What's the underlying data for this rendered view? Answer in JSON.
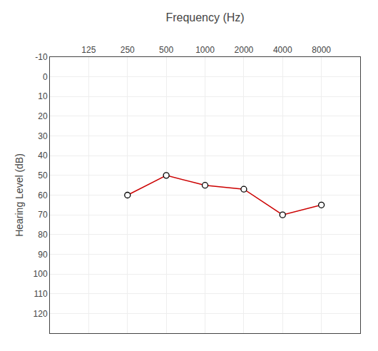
{
  "chart_data": {
    "type": "line",
    "xlabel": "Frequency (Hz)",
    "ylabel": "Hearing Level (dB)",
    "categories": [
      "125",
      "250",
      "500",
      "1000",
      "2000",
      "4000",
      "8000"
    ],
    "values": [
      null,
      60,
      50,
      55,
      57,
      70,
      65
    ],
    "color": "#cc0000",
    "marker": "circle",
    "ylim": [
      130,
      -10
    ],
    "yticks": [
      -10,
      0,
      10,
      20,
      30,
      40,
      50,
      60,
      70,
      80,
      90,
      100,
      110,
      120
    ],
    "grid": true
  }
}
